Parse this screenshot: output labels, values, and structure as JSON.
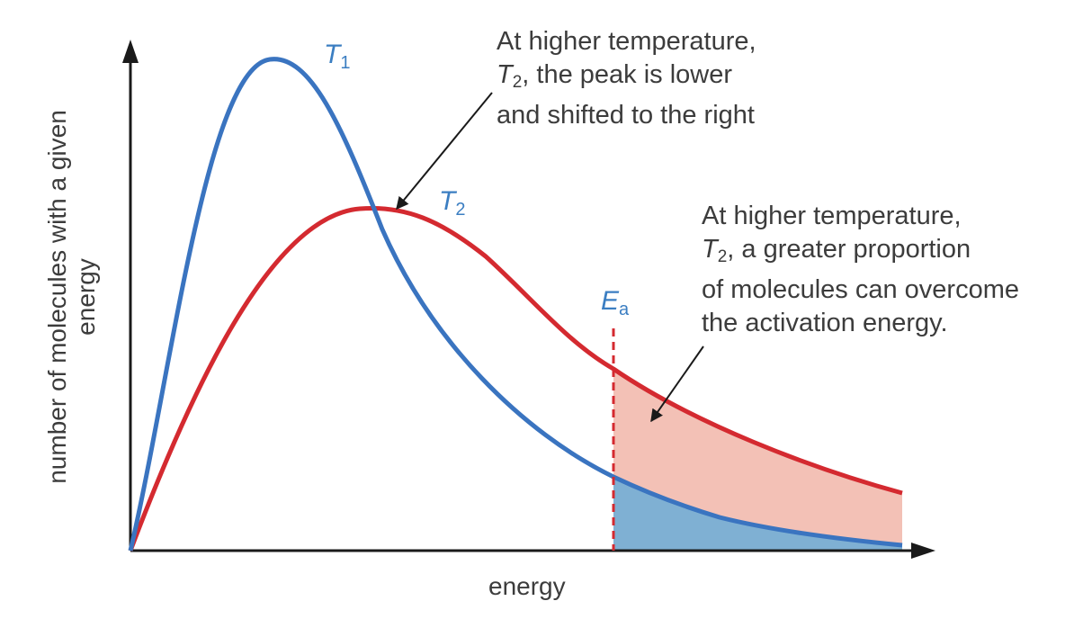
{
  "chart_data": {
    "type": "line",
    "xlabel": "energy",
    "ylabel": "number of molecules with a given energy",
    "series": [
      {
        "name": "T1",
        "color": "#3a74c0",
        "shape": {
          "peak_energy": 0.19,
          "peak_height": 1.0,
          "tail_height_at_end": 0.01
        }
      },
      {
        "name": "T2",
        "color": "#d42a30",
        "shape": {
          "peak_energy": 0.3,
          "peak_height": 0.7,
          "tail_height_at_end": 0.11
        }
      }
    ],
    "activation_energy": {
      "label": "E",
      "subscript": "a",
      "energy": 0.63
    },
    "shaded_regions": [
      {
        "between": "T2 above T1, energy > Ea",
        "color": "#f3c1b6"
      },
      {
        "between": "under T1, energy > Ea",
        "color": "#7fb0d3"
      }
    ],
    "colors": {
      "axis": "#1a1a1a",
      "t1": "#3a74c0",
      "t2": "#d42a30",
      "dash": "#d42a30",
      "arrow": "#1a1a1a",
      "text": "#3c3c3c",
      "label": "#3b7ec2"
    }
  },
  "labels": {
    "t1": {
      "main": "T",
      "sub": "1"
    },
    "t2": {
      "main": "T",
      "sub": "2"
    },
    "ea": {
      "main": "E",
      "sub": "a"
    }
  },
  "annotation_top": {
    "line1": "At higher temperature,",
    "line2_sym": "T",
    "line2_sub": "2",
    "line2_rest": ", the peak is lower",
    "line3": "and shifted to the right"
  },
  "annotation_right": {
    "line1": "At higher temperature,",
    "line2_sym": "T",
    "line2_sub": "2",
    "line2_rest": ", a greater proportion",
    "line3": "of molecules can overcome",
    "line4": "the activation energy."
  },
  "axis_labels": {
    "x": "energy",
    "y_line1": "number of molecules with a given",
    "y_line2": "energy"
  }
}
